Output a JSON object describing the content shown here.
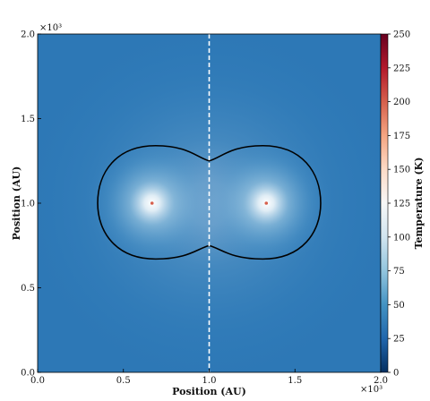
{
  "chart_data": {
    "type": "heatmap",
    "title": "",
    "xlabel": "Position (AU)",
    "ylabel": "Position (AU)",
    "colorbar_label": "Temperature (K)",
    "x_multiplier": "×10³",
    "y_multiplier": "×10³",
    "xlim": [
      0,
      2
    ],
    "ylim": [
      0,
      2
    ],
    "x_ticks": [
      0.0,
      0.5,
      1.0,
      1.5,
      2.0
    ],
    "x_tick_labels": [
      "0.0",
      "0.5",
      "1.0",
      "1.5",
      "2.0"
    ],
    "y_ticks": [
      0.0,
      0.5,
      1.0,
      1.5,
      2.0
    ],
    "y_tick_labels": [
      "0.0",
      "0.5",
      "1.0",
      "1.5",
      "2.0"
    ],
    "colorbar_range": [
      0,
      250
    ],
    "colorbar_ticks": [
      0,
      25,
      50,
      75,
      100,
      125,
      150,
      175,
      200,
      225,
      250
    ],
    "colorbar_tick_labels": [
      "0",
      "25",
      "50",
      "75",
      "100",
      "125",
      "150",
      "175",
      "200",
      "225",
      "250"
    ],
    "colormap": "RdBu_r",
    "background_temperature": 40,
    "sources": [
      {
        "x": 0.667,
        "y": 1.0
      },
      {
        "x": 1.333,
        "y": 1.0
      }
    ],
    "divider": {
      "x": 1.0,
      "style": "dashed",
      "color": "#ffffff"
    },
    "contour": {
      "color": "#000000",
      "x_extent": [
        0.35,
        1.65
      ],
      "y_extent": [
        0.67,
        1.34
      ],
      "waist_y": [
        0.75,
        1.25
      ]
    }
  }
}
